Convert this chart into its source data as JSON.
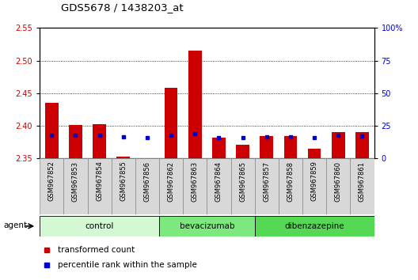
{
  "title": "GDS5678 / 1438203_at",
  "samples": [
    "GSM967852",
    "GSM967853",
    "GSM967854",
    "GSM967855",
    "GSM967856",
    "GSM967862",
    "GSM967863",
    "GSM967864",
    "GSM967865",
    "GSM967857",
    "GSM967858",
    "GSM967859",
    "GSM967860",
    "GSM967861"
  ],
  "red_values": [
    2.435,
    2.401,
    2.402,
    2.353,
    2.348,
    2.458,
    2.515,
    2.382,
    2.371,
    2.384,
    2.384,
    2.365,
    2.39,
    2.39
  ],
  "blue_values": [
    2.385,
    2.385,
    2.385,
    2.383,
    2.382,
    2.385,
    2.388,
    2.382,
    2.382,
    2.383,
    2.383,
    2.382,
    2.385,
    2.384
  ],
  "ylim_left": [
    2.35,
    2.55
  ],
  "ylim_right": [
    0,
    100
  ],
  "yticks_left": [
    2.35,
    2.4,
    2.45,
    2.5,
    2.55
  ],
  "yticks_right": [
    0,
    25,
    50,
    75,
    100
  ],
  "ytick_labels_right": [
    "0",
    "25",
    "50",
    "75",
    "100%"
  ],
  "groups": [
    {
      "label": "control",
      "start": 0,
      "end": 5,
      "color": "#d4f7d4"
    },
    {
      "label": "bevacizumab",
      "start": 5,
      "end": 9,
      "color": "#7de87d"
    },
    {
      "label": "dibenzazepine",
      "start": 9,
      "end": 14,
      "color": "#55d955"
    }
  ],
  "agent_label": "agent",
  "legend_red": "transformed count",
  "legend_blue": "percentile rank within the sample",
  "bar_width": 0.55,
  "red_color": "#cc0000",
  "blue_color": "#0000cc",
  "background_color": "#ffffff",
  "plot_bg_color": "#ffffff",
  "grid_color": "#000000",
  "baseline": 2.35,
  "tick_box_color": "#d8d8d8",
  "tick_box_edge": "#888888"
}
